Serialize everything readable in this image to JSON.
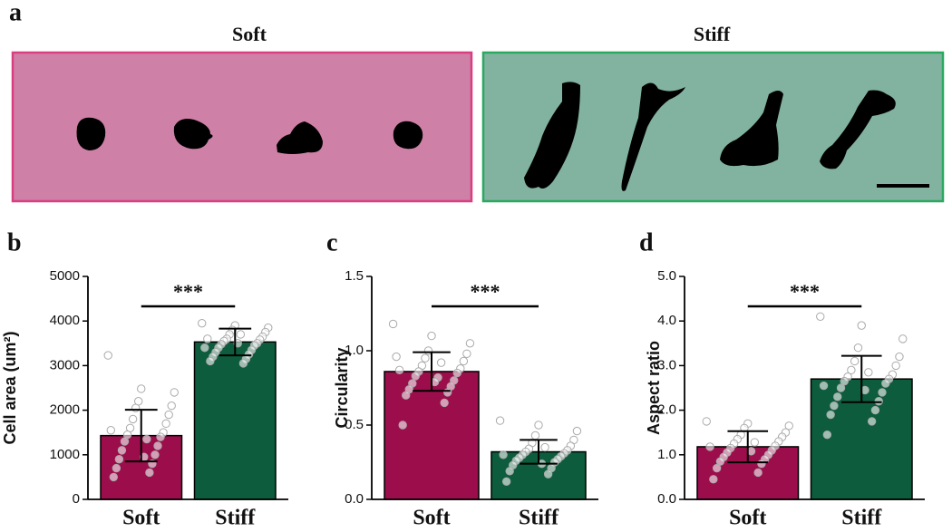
{
  "panel_a": {
    "label": "a",
    "titles": [
      "Soft",
      "Stiff"
    ]
  },
  "chart_data": [
    {
      "type": "bar",
      "panel": "b",
      "ylabel": "Cell area (um²)",
      "categories": [
        "Soft",
        "Stiff"
      ],
      "values": [
        1430,
        3530
      ],
      "errors": [
        580,
        300
      ],
      "colors": [
        "#9c0d4b",
        "#0d5c3d"
      ],
      "points": [
        [
          3230,
          2480,
          2400,
          2200,
          2100,
          2050,
          1900,
          1800,
          1700,
          1600,
          1500,
          1450,
          1400,
          1300,
          1200,
          1100,
          1000,
          900,
          800,
          700,
          600,
          500,
          1350,
          1550,
          950
        ],
        [
          3950,
          3900,
          3850,
          3800,
          3750,
          3700,
          3650,
          3600,
          3580,
          3550,
          3500,
          3480,
          3450,
          3400,
          3350,
          3300,
          3250,
          3200,
          3150,
          3100,
          3050,
          3600,
          3700,
          3400,
          3500
        ]
      ],
      "significance": "***",
      "ylim": [
        0,
        5000
      ],
      "yticks": [
        0,
        1000,
        2000,
        3000,
        4000,
        5000
      ]
    },
    {
      "type": "bar",
      "panel": "c",
      "ylabel": "Circularity",
      "categories": [
        "Soft",
        "Stiff"
      ],
      "values": [
        0.86,
        0.32
      ],
      "errors": [
        0.13,
        0.08
      ],
      "colors": [
        "#9c0d4b",
        "#0d5c3d"
      ],
      "points": [
        [
          1.18,
          1.1,
          1.05,
          1.0,
          0.98,
          0.95,
          0.93,
          0.9,
          0.88,
          0.86,
          0.85,
          0.83,
          0.8,
          0.78,
          0.76,
          0.74,
          0.72,
          0.7,
          0.65,
          0.5,
          0.92,
          0.87,
          0.82,
          0.96,
          0.79
        ],
        [
          0.53,
          0.5,
          0.46,
          0.43,
          0.4,
          0.38,
          0.36,
          0.34,
          0.33,
          0.32,
          0.31,
          0.3,
          0.29,
          0.28,
          0.27,
          0.26,
          0.25,
          0.23,
          0.21,
          0.19,
          0.17,
          0.12,
          0.35,
          0.3,
          0.24
        ]
      ],
      "significance": "***",
      "ylim": [
        0,
        1.5
      ],
      "yticks": [
        {
          "value": 0,
          "label": "0.0"
        },
        0.5,
        {
          "value": 1,
          "label": "1.0"
        },
        1.5
      ]
    },
    {
      "type": "bar",
      "panel": "d",
      "ylabel": "Aspect ratio",
      "categories": [
        "Soft",
        "Stiff"
      ],
      "values": [
        1.18,
        2.7
      ],
      "errors": [
        0.35,
        0.52
      ],
      "colors": [
        "#9c0d4b",
        "#0d5c3d"
      ],
      "points": [
        [
          1.75,
          1.7,
          1.65,
          1.6,
          1.5,
          1.45,
          1.4,
          1.35,
          1.3,
          1.25,
          1.2,
          1.15,
          1.1,
          1.05,
          1.0,
          0.95,
          0.9,
          0.85,
          0.8,
          0.7,
          0.6,
          0.45,
          1.28,
          1.18,
          1.08
        ],
        [
          4.1,
          3.9,
          3.6,
          3.4,
          3.2,
          3.1,
          3.0,
          2.9,
          2.8,
          2.75,
          2.7,
          2.65,
          2.6,
          2.5,
          2.4,
          2.3,
          2.2,
          2.1,
          2.0,
          1.9,
          1.75,
          1.45,
          2.85,
          2.55,
          2.45
        ]
      ],
      "significance": "***",
      "ylim": [
        0,
        5
      ],
      "yticks": [
        {
          "value": 0,
          "label": "0.0"
        },
        {
          "value": 1,
          "label": "1.0"
        },
        {
          "value": 2,
          "label": "2.0"
        },
        {
          "value": 3,
          "label": "3.0"
        },
        {
          "value": 4,
          "label": "4.0"
        },
        {
          "value": 5,
          "label": "5.0"
        }
      ]
    }
  ]
}
